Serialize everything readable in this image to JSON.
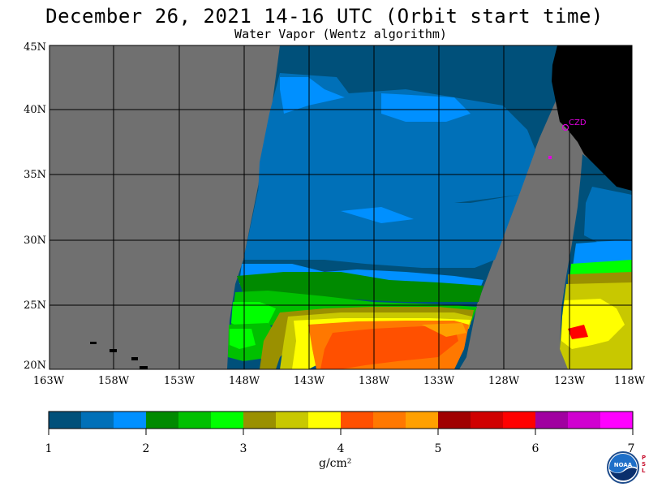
{
  "title": "December 26, 2021  14-16 UTC  (Orbit start time)",
  "subtitle": "Water Vapor (Wentz algorithm)",
  "lat_labels": [
    "45N",
    "40N",
    "35N",
    "30N",
    "25N",
    "20N"
  ],
  "lon_labels": [
    "163W",
    "158W",
    "153W",
    "148W",
    "143W",
    "138W",
    "133W",
    "128W",
    "123W",
    "118W"
  ],
  "station_label": "CZD",
  "colorbar": {
    "ticks": [
      "1",
      "2",
      "3",
      "4",
      "5",
      "6",
      "7"
    ],
    "unit_label": "g/cm²",
    "colors": [
      "#00507a",
      "#0070b8",
      "#0090ff",
      "#008a00",
      "#00c000",
      "#00ff00",
      "#9a9000",
      "#c8c800",
      "#ffff00",
      "#ff5000",
      "#ff7800",
      "#ffa000",
      "#a00000",
      "#d00000",
      "#ff0000",
      "#a000a0",
      "#d000d0",
      "#ff00ff"
    ]
  },
  "logo": {
    "text": "NOAA",
    "side_text": "PSL"
  },
  "colors": {
    "land_no_data": "#707070",
    "land": "#000000",
    "station": "#e000e0"
  }
}
